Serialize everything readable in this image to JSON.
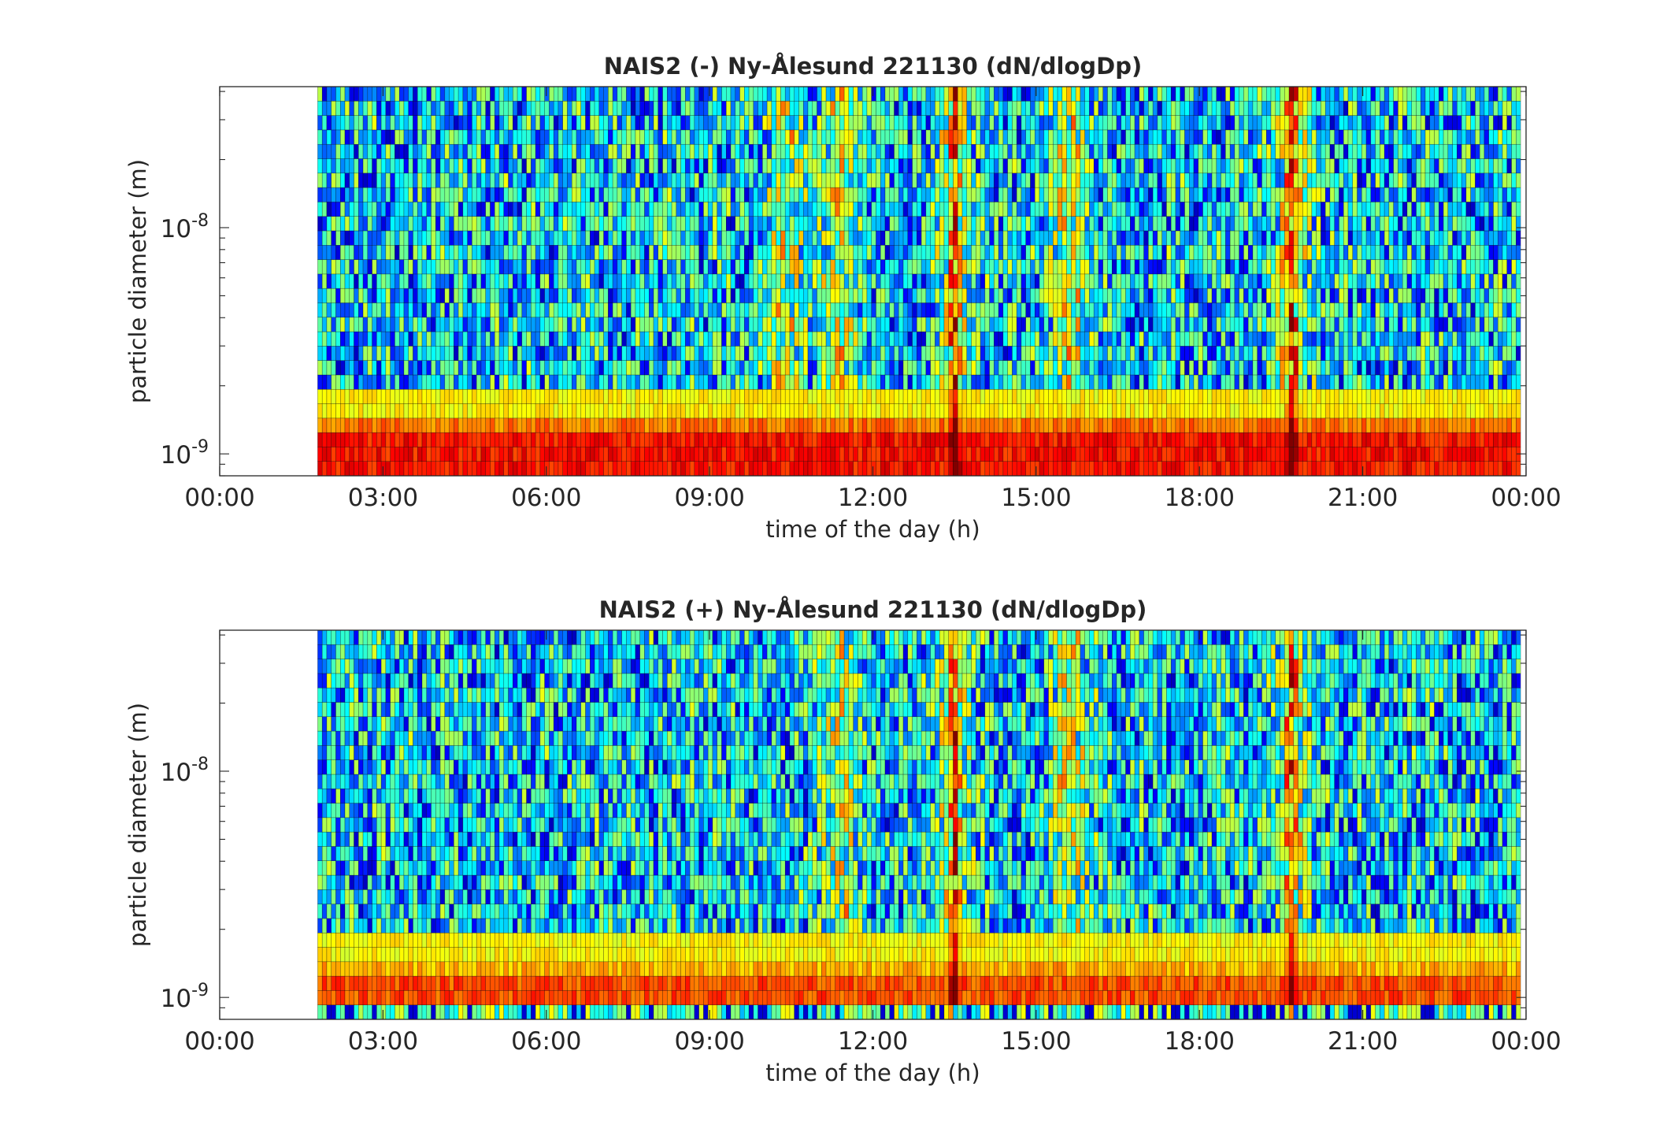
{
  "figure": {
    "background": "#ffffff"
  },
  "chart_data": [
    {
      "type": "heatmap",
      "title": "NAIS2 (-) Ny-Ålesund 221130 (dN/dlogDp)",
      "xlabel": "time of the day (h)",
      "ylabel": "particle diameter (m)",
      "x_ticks": [
        "00:00",
        "03:00",
        "06:00",
        "09:00",
        "12:00",
        "15:00",
        "18:00",
        "21:00",
        "00:00"
      ],
      "xlim": [
        0,
        24
      ],
      "y_scale": "log",
      "ylim": [
        8e-10,
        4.2e-08
      ],
      "y_ticks": [
        {
          "base": "10",
          "exp": "-9"
        },
        {
          "base": "10",
          "exp": "-8"
        }
      ],
      "y_tick_values": [
        1e-09,
        1e-08
      ],
      "data_start_hour": 1.8,
      "data_end_hour": 23.9,
      "colormap": "jet",
      "colorbar": false,
      "grid": false,
      "features": {
        "bright_columns_hours": [
          10.4,
          11.4,
          13.5,
          15.6,
          19.7
        ],
        "red_columns_hours": [
          13.5,
          19.7
        ],
        "low_size_band_max": 1.45e-09,
        "seed": 7
      }
    },
    {
      "type": "heatmap",
      "title": "NAIS2 (+) Ny-Ålesund 221130 (dN/dlogDp)",
      "xlabel": "time of the day (h)",
      "ylabel": "particle diameter (m)",
      "x_ticks": [
        "00:00",
        "03:00",
        "06:00",
        "09:00",
        "12:00",
        "15:00",
        "18:00",
        "21:00",
        "00:00"
      ],
      "xlim": [
        0,
        24
      ],
      "y_scale": "log",
      "ylim": [
        8e-10,
        4.2e-08
      ],
      "y_ticks": [
        {
          "base": "10",
          "exp": "-9"
        },
        {
          "base": "10",
          "exp": "-8"
        }
      ],
      "y_tick_values": [
        1e-09,
        1e-08
      ],
      "data_start_hour": 1.8,
      "data_end_hour": 23.9,
      "colormap": "jet",
      "colorbar": false,
      "grid": false,
      "features": {
        "bright_columns_hours": [
          11.4,
          13.5,
          15.6,
          19.7
        ],
        "red_columns_hours": [
          13.5,
          19.7
        ],
        "low_size_band_max": 1.45e-09,
        "seed": 13
      }
    }
  ]
}
